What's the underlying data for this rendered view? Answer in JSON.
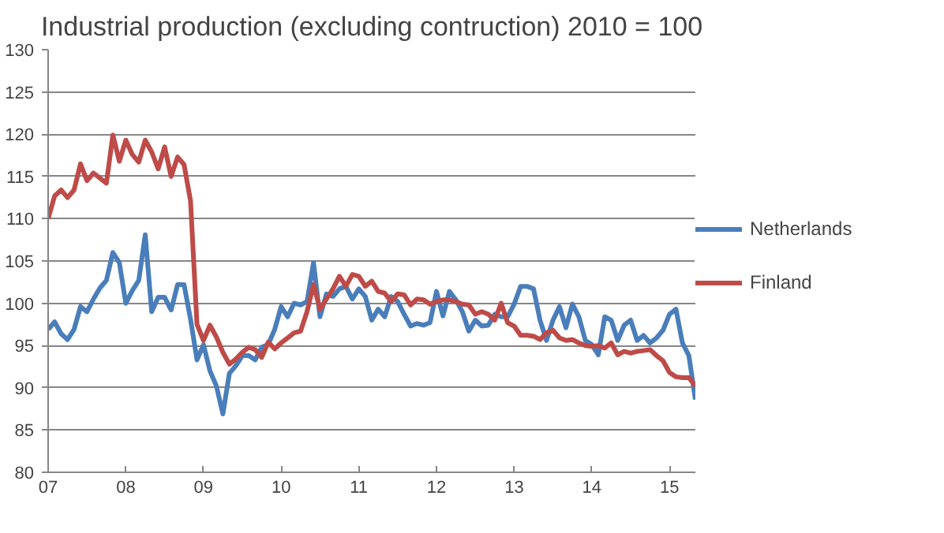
{
  "chart_data": {
    "type": "line",
    "title": "Industrial production (excluding contruction) 2010 = 100",
    "x": [
      "2007-01",
      "2007-02",
      "2007-03",
      "2007-04",
      "2007-05",
      "2007-06",
      "2007-07",
      "2007-08",
      "2007-09",
      "2007-10",
      "2007-11",
      "2007-12",
      "2008-01",
      "2008-02",
      "2008-03",
      "2008-04",
      "2008-05",
      "2008-06",
      "2008-07",
      "2008-08",
      "2008-09",
      "2008-10",
      "2008-11",
      "2008-12",
      "2009-01",
      "2009-02",
      "2009-03",
      "2009-04",
      "2009-05",
      "2009-06",
      "2009-07",
      "2009-08",
      "2009-09",
      "2009-10",
      "2009-11",
      "2009-12",
      "2010-01",
      "2010-02",
      "2010-03",
      "2010-04",
      "2010-05",
      "2010-06",
      "2010-07",
      "2010-08",
      "2010-09",
      "2010-10",
      "2010-11",
      "2010-12",
      "2011-01",
      "2011-02",
      "2011-03",
      "2011-04",
      "2011-05",
      "2011-06",
      "2011-07",
      "2011-08",
      "2011-09",
      "2011-10",
      "2011-11",
      "2011-12",
      "2012-01",
      "2012-02",
      "2012-03",
      "2012-04",
      "2012-05",
      "2012-06",
      "2012-07",
      "2012-08",
      "2012-09",
      "2012-10",
      "2012-11",
      "2012-12",
      "2013-01",
      "2013-02",
      "2013-03",
      "2013-04",
      "2013-05",
      "2013-06",
      "2013-07",
      "2013-08",
      "2013-09",
      "2013-10",
      "2013-11",
      "2013-12",
      "2014-01",
      "2014-02",
      "2014-03",
      "2014-04",
      "2014-05",
      "2014-06",
      "2014-07",
      "2014-08",
      "2014-09",
      "2014-10",
      "2014-11",
      "2014-12",
      "2015-01",
      "2015-02",
      "2015-03",
      "2015-04",
      "2015-05"
    ],
    "series": [
      {
        "name": "Netherlands",
        "color": "#4a7ebb",
        "values": [
          96.9,
          97.8,
          96.4,
          95.7,
          96.9,
          99.6,
          99,
          100.5,
          101.8,
          102.7,
          106,
          104.8,
          100,
          101.5,
          102.7,
          108.1,
          99,
          100.7,
          100.7,
          99.2,
          102.2,
          102.2,
          98.1,
          93.3,
          95.1,
          92,
          90.2,
          86.9,
          91.7,
          92.6,
          93.8,
          93.8,
          93.3,
          94.8,
          95.1,
          96.9,
          99.6,
          98.4,
          100,
          99.8,
          100.2,
          104.8,
          98.4,
          101.1,
          100.8,
          101.7,
          102,
          100.5,
          101.7,
          100.8,
          98,
          99.3,
          98.4,
          100.8,
          100.2,
          98.7,
          97.3,
          97.6,
          97.4,
          97.7,
          101.4,
          98.5,
          101.4,
          100.4,
          99,
          96.7,
          98,
          97.3,
          97.4,
          98.7,
          98.4,
          98.4,
          99.9,
          102,
          102,
          101.7,
          98,
          95.6,
          98,
          99.6,
          97.1,
          99.9,
          98.4,
          95.6,
          95.1,
          93.9,
          98.4,
          98,
          95.6,
          97.4,
          98,
          95.6,
          96.2,
          95.3,
          95.9,
          96.8,
          98.7,
          99.3,
          95.3,
          93.8,
          88.6
        ]
      },
      {
        "name": "Finland",
        "color": "#be4b48",
        "values": [
          110,
          112.7,
          113.4,
          112.5,
          113.4,
          116.5,
          114.5,
          115.4,
          114.8,
          114.2,
          119.9,
          116.8,
          119.3,
          117.6,
          116.7,
          119.3,
          117.9,
          115.9,
          118.5,
          115,
          117.3,
          116.4,
          112.1,
          97.5,
          95.6,
          97.4,
          96,
          94.2,
          92.8,
          93.4,
          94.2,
          94.8,
          94.5,
          93.6,
          95.4,
          94.6,
          95.3,
          95.9,
          96.5,
          96.7,
          99,
          102.2,
          99.3,
          100.5,
          101.7,
          103.2,
          102,
          103.4,
          103.2,
          102,
          102.6,
          101.4,
          101.2,
          100.2,
          101.1,
          101,
          99.8,
          100.5,
          100.4,
          99.9,
          100.2,
          100.4,
          100.4,
          100.2,
          99.9,
          99.8,
          98.7,
          99,
          98.7,
          98,
          100,
          97.7,
          97.3,
          96.2,
          96.2,
          96.1,
          95.7,
          96.5,
          96.8,
          95.9,
          95.6,
          95.7,
          95.3,
          95,
          94.9,
          95,
          94.7,
          95.3,
          93.9,
          94.3,
          94.1,
          94.3,
          94.4,
          94.5,
          93.8,
          93.2,
          91.8,
          91.3,
          91.2,
          91.2,
          90.2
        ]
      }
    ],
    "xlim": [
      "2007-01",
      "2015-05"
    ],
    "xticks": [
      {
        "value": "2007-01",
        "label": "07"
      },
      {
        "value": "2008-01",
        "label": "08"
      },
      {
        "value": "2009-01",
        "label": "09"
      },
      {
        "value": "2010-01",
        "label": "10"
      },
      {
        "value": "2011-01",
        "label": "11"
      },
      {
        "value": "2012-01",
        "label": "12"
      },
      {
        "value": "2013-01",
        "label": "13"
      },
      {
        "value": "2014-01",
        "label": "14"
      },
      {
        "value": "2015-01",
        "label": "15"
      }
    ],
    "ylim": [
      80,
      130
    ],
    "yticks": [
      80,
      85,
      90,
      95,
      100,
      105,
      110,
      115,
      120,
      125,
      130
    ],
    "grid": "y",
    "legend": "right",
    "line_style": "solid",
    "marker": "none"
  }
}
